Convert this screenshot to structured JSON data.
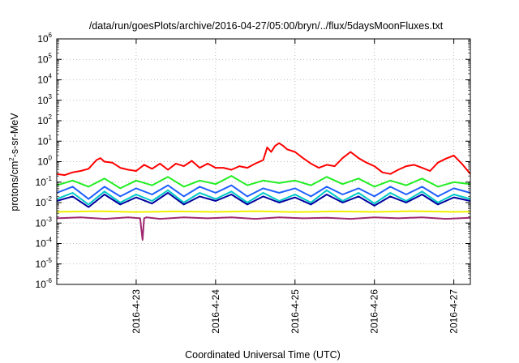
{
  "chart_data": {
    "type": "line",
    "title": "/data/run/goesPlots/archive/2016-04-27/05:00/bryn/../flux/5daysMoonFluxes.txt",
    "xlabel": "Coordinated Universal Time (UTC)",
    "ylabel": "protons/cm²-s-sr-MeV",
    "ylabel_parts": {
      "pre": "protons/cm",
      "sup": "2",
      "post": "-s-sr-MeV"
    },
    "yscale": "log",
    "ylim": [
      1e-06,
      1000000.0
    ],
    "y_ticks": [
      {
        "base": "10",
        "exp": "-6"
      },
      {
        "base": "10",
        "exp": "-5"
      },
      {
        "base": "10",
        "exp": "-4"
      },
      {
        "base": "10",
        "exp": "-3"
      },
      {
        "base": "10",
        "exp": "-2"
      },
      {
        "base": "10",
        "exp": "-1"
      },
      {
        "base": "10",
        "exp": "0"
      },
      {
        "base": "10",
        "exp": "1"
      },
      {
        "base": "10",
        "exp": "2"
      },
      {
        "base": "10",
        "exp": "3"
      },
      {
        "base": "10",
        "exp": "4"
      },
      {
        "base": "10",
        "exp": "5"
      },
      {
        "base": "10",
        "exp": "6"
      }
    ],
    "xlim": [
      "2016-04-22 00:00",
      "2016-04-27 05:00"
    ],
    "x_ticks": [
      "2016-4-23",
      "2016-4-24",
      "2016-4-25",
      "2016-4-26",
      "2016-4-27"
    ],
    "grid": true,
    "colors": {
      "red": "#ff0000",
      "green": "#22ee22",
      "cyan": "#00c8c8",
      "blue_light": "#2060ff",
      "blue_dark": "#0000a0",
      "yellow": "#f0f000",
      "purple": "#a02870"
    },
    "series": [
      {
        "color": "#ff0000",
        "x": [
          0,
          0.1,
          0.2,
          0.3,
          0.4,
          0.5,
          0.55,
          0.6,
          0.7,
          0.8,
          0.9,
          1.0,
          1.1,
          1.2,
          1.3,
          1.4,
          1.5,
          1.6,
          1.7,
          1.8,
          1.9,
          2.0,
          2.1,
          2.2,
          2.3,
          2.4,
          2.5,
          2.6,
          2.65,
          2.7,
          2.75,
          2.8,
          2.85,
          2.9,
          3.0,
          3.1,
          3.2,
          3.3,
          3.4,
          3.5,
          3.6,
          3.7,
          3.8,
          3.9,
          4.0,
          4.1,
          4.2,
          4.3,
          4.4,
          4.5,
          4.6,
          4.7,
          4.8,
          4.9,
          5.0,
          5.1,
          5.208
        ],
        "y": [
          0.25,
          0.22,
          0.3,
          0.35,
          0.45,
          1.2,
          1.5,
          1.0,
          0.9,
          0.5,
          0.4,
          0.35,
          0.7,
          0.45,
          0.8,
          0.4,
          0.8,
          0.6,
          1.1,
          0.5,
          0.8,
          0.5,
          0.5,
          0.4,
          0.6,
          0.5,
          0.8,
          1.2,
          5,
          3,
          6,
          8,
          6,
          4,
          3,
          1.5,
          0.8,
          0.5,
          0.7,
          0.6,
          1.5,
          3,
          1.5,
          0.9,
          0.6,
          0.3,
          0.25,
          0.4,
          0.6,
          0.7,
          0.5,
          0.35,
          0.9,
          1.4,
          2,
          0.8,
          0.25
        ]
      },
      {
        "color": "#22ee22",
        "x": [
          0,
          0.2,
          0.4,
          0.6,
          0.8,
          1.0,
          1.2,
          1.4,
          1.6,
          1.8,
          2.0,
          2.2,
          2.4,
          2.6,
          2.8,
          3.0,
          3.2,
          3.4,
          3.6,
          3.8,
          4.0,
          4.2,
          4.4,
          4.6,
          4.8,
          5.0,
          5.208
        ],
        "y": [
          0.07,
          0.12,
          0.06,
          0.15,
          0.05,
          0.12,
          0.07,
          0.18,
          0.06,
          0.12,
          0.08,
          0.2,
          0.07,
          0.12,
          0.09,
          0.12,
          0.07,
          0.18,
          0.08,
          0.15,
          0.06,
          0.12,
          0.07,
          0.15,
          0.06,
          0.1,
          0.08
        ]
      },
      {
        "color": "#00c8c8",
        "x": [
          0,
          0.2,
          0.4,
          0.6,
          0.8,
          1.0,
          1.2,
          1.4,
          1.6,
          1.8,
          2.0,
          2.2,
          2.4,
          2.6,
          2.8,
          3.0,
          3.2,
          3.4,
          3.6,
          3.8,
          4.0,
          4.2,
          4.4,
          4.6,
          4.8,
          5.0,
          5.208
        ],
        "y": [
          0.015,
          0.03,
          0.008,
          0.035,
          0.01,
          0.025,
          0.012,
          0.04,
          0.01,
          0.03,
          0.015,
          0.035,
          0.01,
          0.03,
          0.012,
          0.025,
          0.01,
          0.04,
          0.012,
          0.03,
          0.009,
          0.03,
          0.012,
          0.035,
          0.01,
          0.025,
          0.015
        ]
      },
      {
        "color": "#2060ff",
        "x": [
          0,
          0.2,
          0.4,
          0.6,
          0.8,
          1.0,
          1.2,
          1.4,
          1.6,
          1.8,
          2.0,
          2.2,
          2.4,
          2.6,
          2.8,
          3.0,
          3.2,
          3.4,
          3.6,
          3.8,
          4.0,
          4.2,
          4.4,
          4.6,
          4.8,
          5.0,
          5.208
        ],
        "y": [
          0.03,
          0.06,
          0.015,
          0.06,
          0.02,
          0.05,
          0.025,
          0.07,
          0.02,
          0.06,
          0.03,
          0.07,
          0.02,
          0.05,
          0.03,
          0.05,
          0.02,
          0.06,
          0.025,
          0.05,
          0.02,
          0.06,
          0.025,
          0.06,
          0.02,
          0.05,
          0.03
        ]
      },
      {
        "color": "#0000a0",
        "x": [
          0,
          0.2,
          0.4,
          0.6,
          0.8,
          1.0,
          1.2,
          1.4,
          1.6,
          1.8,
          2.0,
          2.2,
          2.4,
          2.6,
          2.8,
          3.0,
          3.2,
          3.4,
          3.6,
          3.8,
          4.0,
          4.2,
          4.4,
          4.6,
          4.8,
          5.0,
          5.208
        ],
        "y": [
          0.012,
          0.02,
          0.006,
          0.025,
          0.008,
          0.018,
          0.009,
          0.03,
          0.008,
          0.02,
          0.012,
          0.025,
          0.008,
          0.02,
          0.01,
          0.018,
          0.008,
          0.025,
          0.01,
          0.02,
          0.007,
          0.02,
          0.01,
          0.025,
          0.008,
          0.018,
          0.012
        ]
      },
      {
        "color": "#f0f000",
        "x": [
          0,
          0.5,
          1.0,
          1.5,
          2.0,
          2.5,
          3.0,
          3.5,
          4.0,
          4.5,
          5.0,
          5.208
        ],
        "y": [
          0.0035,
          0.0038,
          0.0034,
          0.0037,
          0.0035,
          0.0038,
          0.0034,
          0.0037,
          0.0035,
          0.0038,
          0.0035,
          0.0036
        ]
      },
      {
        "color": "#a02870",
        "x": [
          0,
          0.3,
          0.6,
          0.9,
          1.05,
          1.08,
          1.1,
          1.13,
          1.3,
          1.6,
          1.9,
          2.2,
          2.5,
          2.8,
          3.1,
          3.4,
          3.7,
          4.0,
          4.3,
          4.6,
          4.9,
          5.208
        ],
        "y": [
          0.0017,
          0.0019,
          0.0016,
          0.0019,
          0.0017,
          0.00015,
          0.0017,
          0.0019,
          0.0016,
          0.0019,
          0.0017,
          0.0019,
          0.0016,
          0.0019,
          0.0017,
          0.0018,
          0.0016,
          0.0019,
          0.0017,
          0.0019,
          0.0016,
          0.0018
        ]
      }
    ]
  }
}
